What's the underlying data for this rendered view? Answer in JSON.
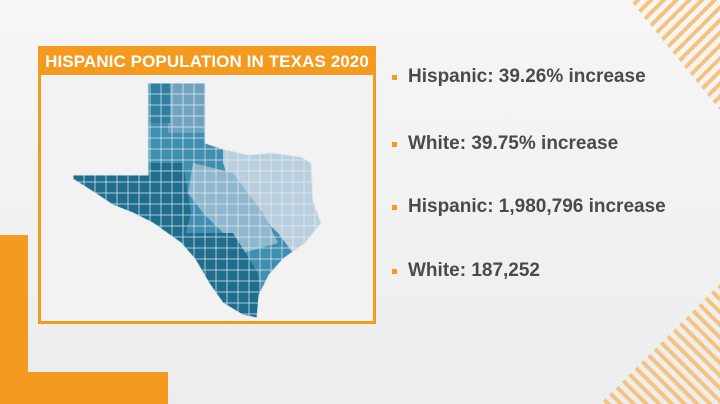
{
  "panel": {
    "title": "HISPANIC POPULATION IN TEXAS 2020"
  },
  "bullets": [
    {
      "text": "Hispanic: 39.26% increase"
    },
    {
      "text": "White: 39.75% increase"
    },
    {
      "text": "Hispanic: 1,980,796 increase"
    },
    {
      "text": "White: 187,252"
    }
  ],
  "colors": {
    "accent": "#f39a1f",
    "map_dark": "#1f6e8e",
    "map_mid": "#3f8fb0",
    "map_light": "#8fb8cf",
    "map_pale": "#b9cfdd"
  }
}
